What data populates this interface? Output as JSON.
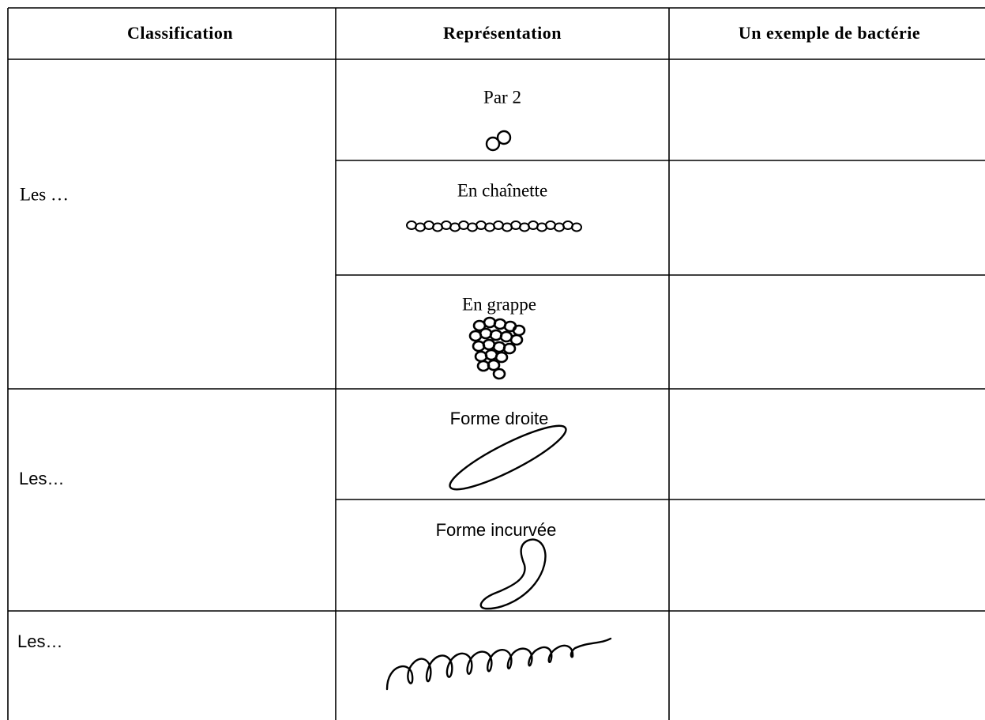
{
  "table": {
    "headers": [
      "Classification",
      "Représentation",
      "Un exemple de bactérie"
    ],
    "groups": [
      {
        "label": "Les …",
        "shapes": [
          "Par 2",
          "En chaînette",
          "En grappe"
        ]
      },
      {
        "label": "Les…",
        "shapes": [
          "Forme droite",
          "Forme incurvée"
        ]
      },
      {
        "label": "Les…",
        "shapes": []
      }
    ]
  }
}
